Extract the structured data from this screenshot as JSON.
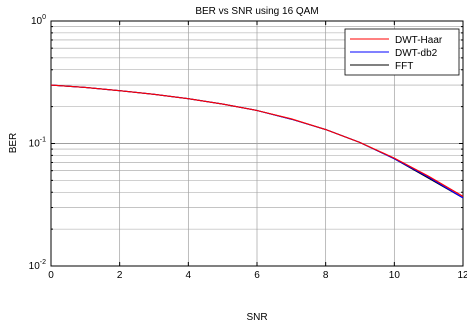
{
  "chart_data": {
    "type": "line",
    "title": "BER vs SNR using 16 QAM",
    "xlabel": "SNR",
    "ylabel": "BER",
    "xlim": [
      0,
      12
    ],
    "ylim": [
      0.01,
      1
    ],
    "yscale": "log",
    "grid": true,
    "legend_position": "top-right",
    "x_ticks": [
      "0",
      "2",
      "4",
      "6",
      "8",
      "10",
      "12"
    ],
    "y_ticks": [
      {
        "base": "10",
        "exp": "-2"
      },
      {
        "base": "10",
        "exp": "-1"
      },
      {
        "base": "10",
        "exp": "0"
      }
    ],
    "x": [
      0,
      1,
      2,
      3,
      4,
      5,
      6,
      7,
      8,
      9,
      10,
      11,
      12
    ],
    "series": [
      {
        "name": "DWT-Haar",
        "color": "#ff0000",
        "values": [
          0.3,
          0.287,
          0.27,
          0.252,
          0.232,
          0.21,
          0.186,
          0.159,
          0.13,
          0.102,
          0.076,
          0.054,
          0.037
        ]
      },
      {
        "name": "DWT-db2",
        "color": "#0000ff",
        "values": [
          0.3,
          0.287,
          0.27,
          0.252,
          0.232,
          0.21,
          0.186,
          0.158,
          0.13,
          0.102,
          0.075,
          0.053,
          0.036
        ]
      },
      {
        "name": "FFT",
        "color": "#000000",
        "values": [
          0.3,
          0.287,
          0.27,
          0.252,
          0.232,
          0.21,
          0.186,
          0.158,
          0.13,
          0.102,
          0.075,
          0.052,
          0.036
        ]
      }
    ]
  }
}
